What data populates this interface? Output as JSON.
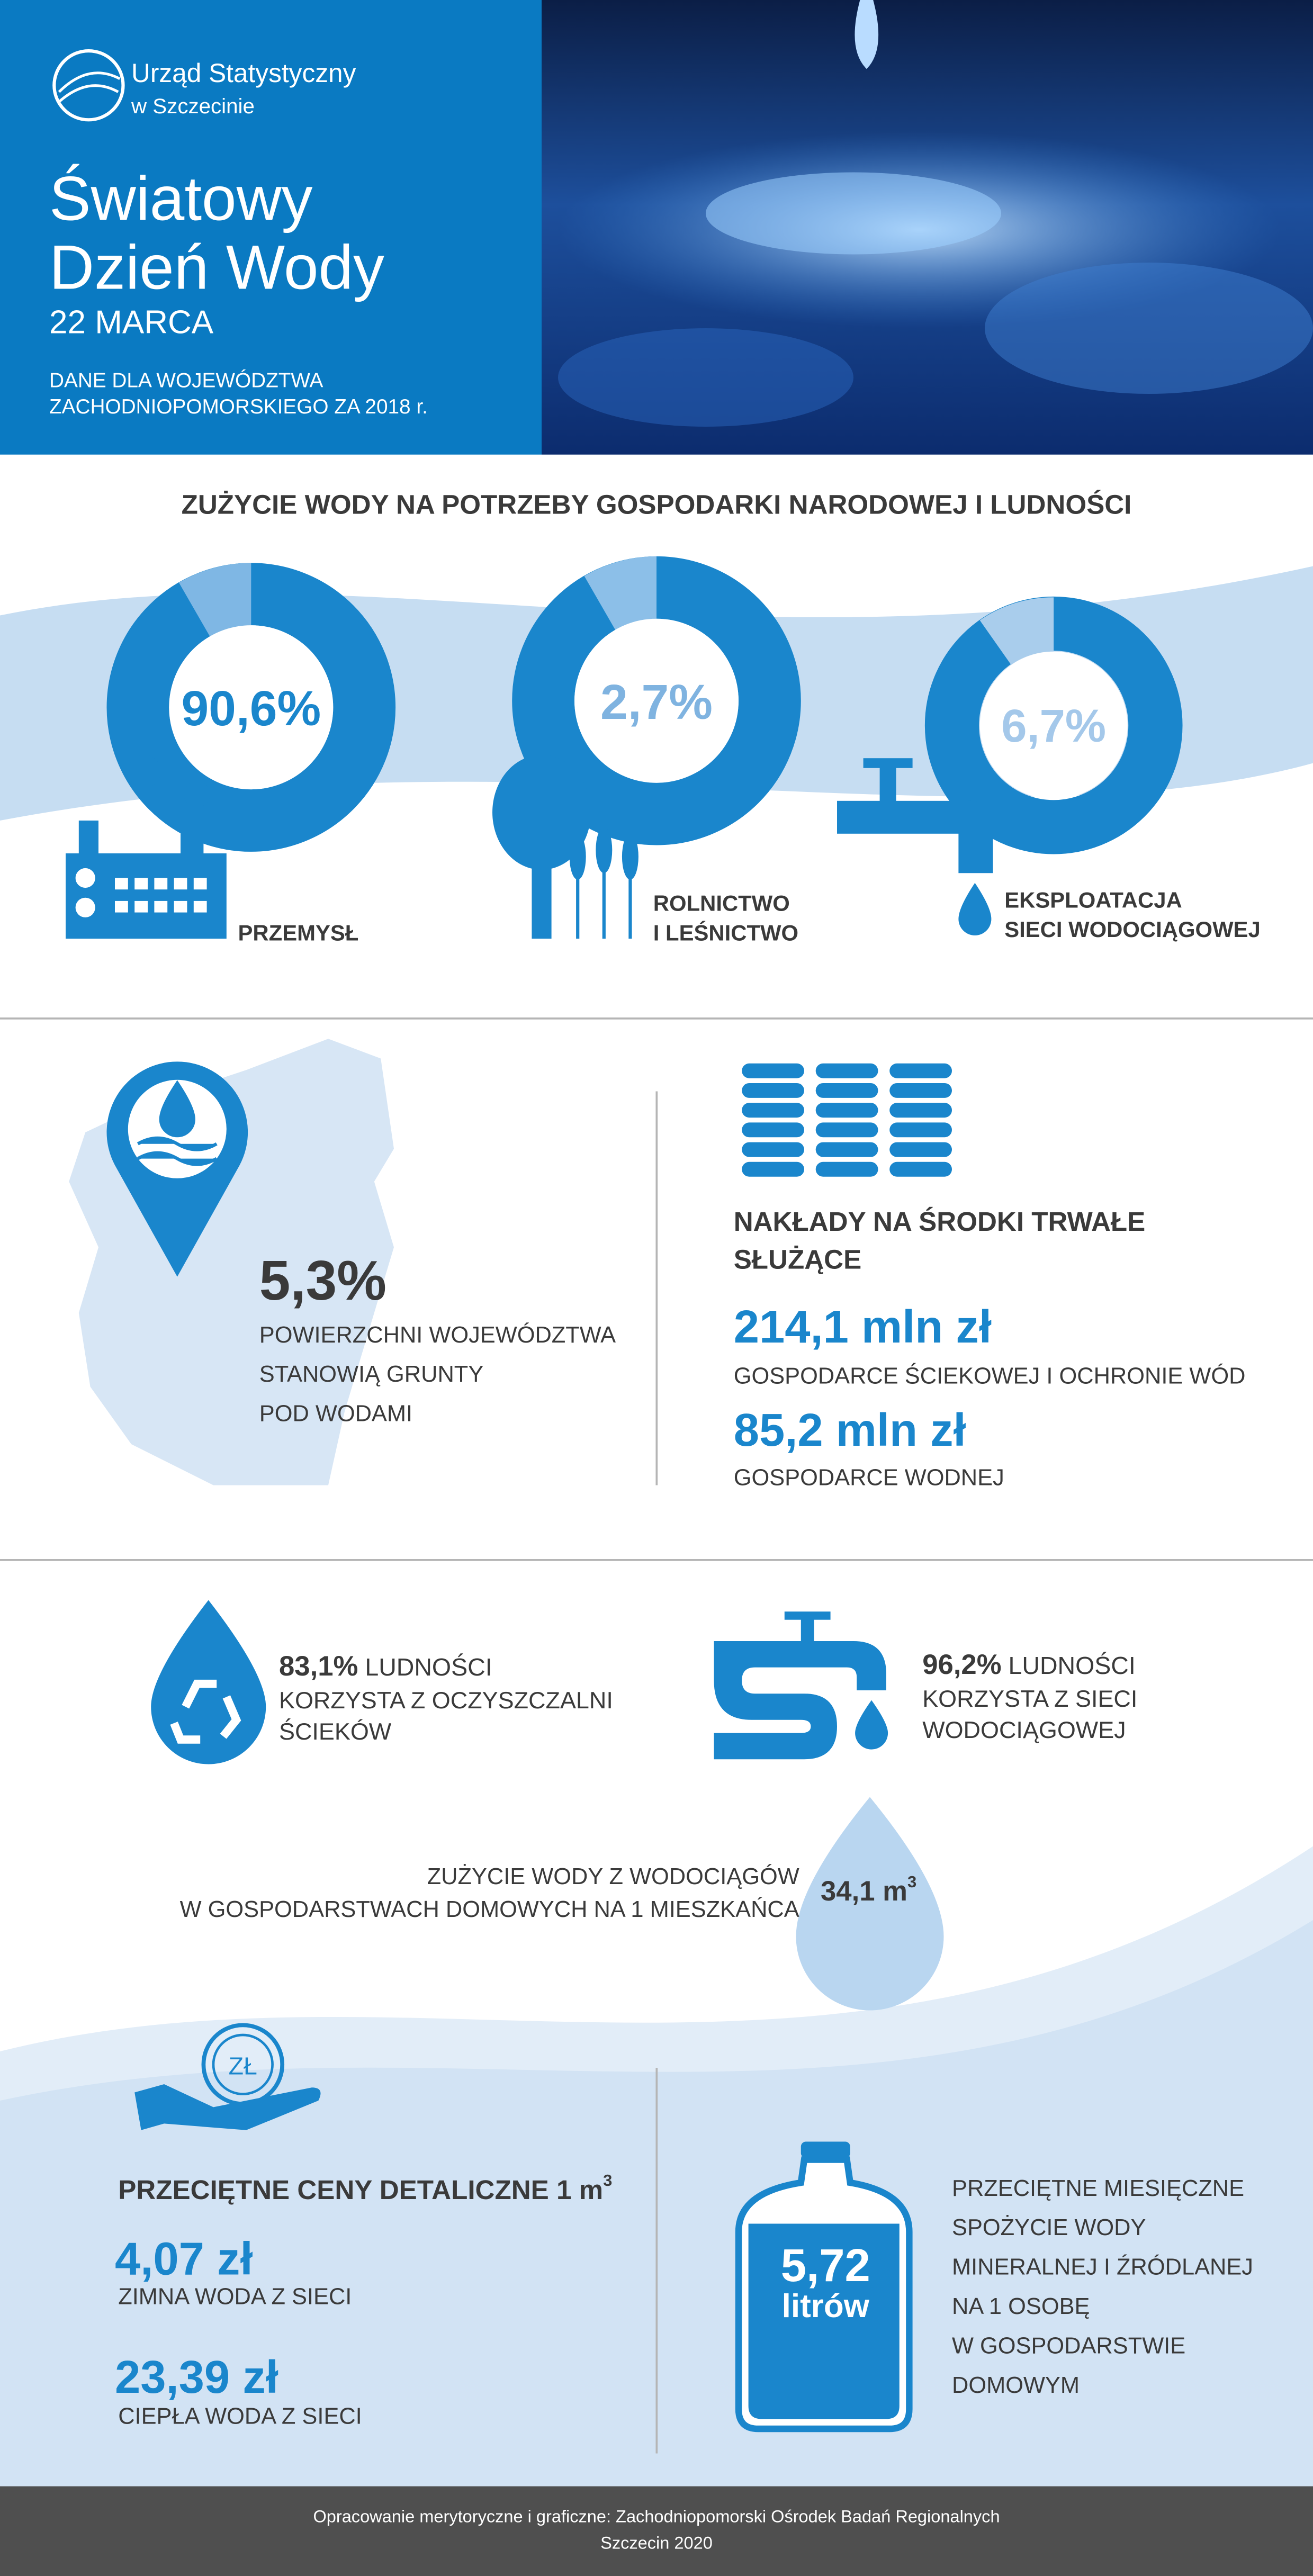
{
  "header": {
    "logo_line1": "Urząd Statystyczny",
    "logo_line2": "w Szczecinie",
    "title_line1": "Światowy",
    "title_line2": "Dzień Wody",
    "date": "22 MARCA",
    "subtitle_line1": "DANE DLA WOJEWÓDZTWA",
    "subtitle_line2": "ZACHODNIOPOMORSKIEGO ZA 2018 r."
  },
  "usage": {
    "heading": "ZUŻYCIE WODY NA POTRZEBY GOSPODARKI NARODOWEJ I LUDNOŚCI",
    "items": [
      {
        "share": "90,6%",
        "label_lines": [
          "PRZEMYSŁ"
        ]
      },
      {
        "share": "2,7%",
        "label_lines": [
          "ROLNICTWO",
          "I LEŚNICTWO"
        ]
      },
      {
        "share": "6,7%",
        "label_lines": [
          "EKSPLOATACJA",
          "SIECI WODOCIĄGOWEJ"
        ]
      }
    ]
  },
  "area": {
    "value": "5,3%",
    "lines": [
      "POWIERZCHNI WOJEWÓDZTWA",
      "STANOWIĄ GRUNTY",
      "POD WODAMI"
    ]
  },
  "investment": {
    "heading_lines": [
      "NAKŁADY NA ŚRODKI TRWAŁE",
      "SŁUŻĄCE"
    ],
    "items": [
      {
        "amount": "214,1 mln zł",
        "label": "GOSPODARCE ŚCIEKOWEJ I OCHRONIE WÓD"
      },
      {
        "amount": "85,2 mln zł",
        "label": "GOSPODARCE WODNEJ"
      }
    ]
  },
  "access": [
    {
      "share": "83,1%",
      "lines": [
        "LUDNOŚCI",
        "KORZYSTA Z OCZYSZCZALNI",
        "ŚCIEKÓW"
      ]
    },
    {
      "share": "96,2%",
      "lines": [
        "LUDNOŚCI",
        "KORZYSTA Z SIECI",
        "WODOCIĄGOWEJ"
      ]
    }
  ],
  "household": {
    "lines": [
      "ZUŻYCIE WODY Z WODOCIĄGÓW",
      "W GOSPODARSTWACH DOMOWYCH NA 1 MIESZKAŃCA"
    ],
    "value": "34,1 m",
    "superscript": "3"
  },
  "prices": {
    "coin_label": "ZŁ",
    "heading": "PRZECIĘTNE CENY DETALICZNE 1 m",
    "superscript": "3",
    "items": [
      {
        "amount": "4,07 zł",
        "label": "ZIMNA WODA Z SIECI"
      },
      {
        "amount": "23,39 zł",
        "label": "CIEPŁA WODA Z SIECI"
      }
    ]
  },
  "mineral": {
    "value": "5,72",
    "unit": "litrów",
    "lines": [
      "PRZECIĘTNE MIESIĘCZNE",
      "SPOŻYCIE WODY",
      "MINERALNEJ I ŹRÓDLANEJ",
      "NA 1 OSOBĘ",
      "W GOSPODARSTWIE",
      "DOMOWYM"
    ]
  },
  "footer": {
    "lines": [
      "Opracowanie merytoryczne i graficzne: Zachodniopomorski Ośrodek Badań Regionalnych",
      "Szczecin 2020"
    ]
  }
}
